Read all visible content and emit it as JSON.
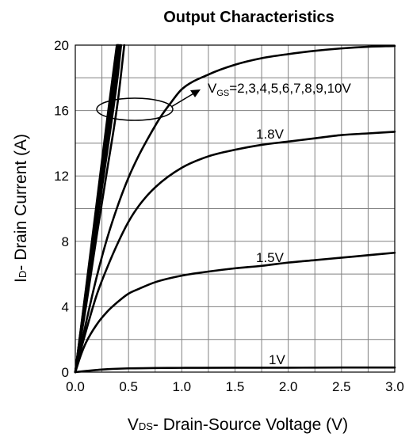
{
  "chart_data": {
    "type": "line",
    "title": "Output Characteristics",
    "xlabel": {
      "main": "V",
      "sub": "DS",
      "rest": "- Drain-Source Voltage (V)"
    },
    "ylabel": {
      "main": "I",
      "sub": "D",
      "rest": "- Drain Current (A)"
    },
    "xlim": [
      0,
      3
    ],
    "ylim": [
      0,
      20
    ],
    "x_ticks": [
      0,
      0.5,
      1,
      1.5,
      2,
      2.5,
      3
    ],
    "x_tick_labels": [
      "0.0",
      "0.5",
      "1.0",
      "1.5",
      "2.0",
      "2.5",
      "3.0"
    ],
    "y_ticks": [
      0,
      4,
      8,
      12,
      16,
      20
    ],
    "y_tick_labels": [
      "0",
      "4",
      "8",
      "12",
      "16",
      "20"
    ],
    "grid": true,
    "x_minor_step": 0.25,
    "y_minor_step": 2,
    "annotation": {
      "main": "V",
      "sub": "GS",
      "rest": "=2,3,4,5,6,7,8,9,10V"
    },
    "series": [
      {
        "name": "1V",
        "x": [
          0,
          0.1,
          0.2,
          0.3,
          0.5,
          0.75,
          1.0,
          1.5,
          2.0,
          2.5,
          3.0
        ],
        "y": [
          0,
          0.07,
          0.13,
          0.18,
          0.23,
          0.25,
          0.26,
          0.27,
          0.27,
          0.28,
          0.28
        ]
      },
      {
        "name": "1.5V",
        "x": [
          0,
          0.05,
          0.1,
          0.2,
          0.3,
          0.4,
          0.5,
          0.6,
          0.75,
          1.0,
          1.25,
          1.5,
          1.75,
          2.0,
          2.25,
          2.5,
          2.75,
          3.0
        ],
        "y": [
          0,
          1.0,
          1.8,
          2.9,
          3.7,
          4.3,
          4.8,
          5.1,
          5.5,
          5.9,
          6.15,
          6.35,
          6.5,
          6.7,
          6.85,
          7.0,
          7.15,
          7.3
        ]
      },
      {
        "name": "1.8V",
        "x": [
          0,
          0.05,
          0.1,
          0.2,
          0.3,
          0.4,
          0.5,
          0.6,
          0.75,
          1.0,
          1.25,
          1.5,
          1.75,
          2.0,
          2.25,
          2.5,
          2.75,
          3.0
        ],
        "y": [
          0,
          1.3,
          2.5,
          4.7,
          6.4,
          7.9,
          9.2,
          10.2,
          11.3,
          12.5,
          13.2,
          13.6,
          13.9,
          14.1,
          14.3,
          14.5,
          14.6,
          14.7
        ]
      },
      {
        "name": "2V",
        "x": [
          0,
          0.05,
          0.1,
          0.2,
          0.3,
          0.4,
          0.5,
          0.6,
          0.7,
          0.8,
          0.9,
          1.0,
          1.25,
          1.5,
          1.75,
          2.0,
          2.25,
          2.5,
          2.75,
          3.0
        ],
        "y": [
          0,
          1.5,
          3.0,
          5.8,
          8.2,
          10.2,
          11.9,
          13.3,
          14.5,
          15.6,
          16.5,
          17.3,
          18.2,
          18.8,
          19.2,
          19.45,
          19.65,
          19.8,
          19.9,
          19.95
        ]
      },
      {
        "name": "3V",
        "x": [
          0,
          0.1,
          0.2,
          0.3,
          0.4,
          0.46
        ],
        "y": [
          0,
          4.0,
          8.3,
          12.4,
          16.6,
          20
        ]
      },
      {
        "name": "4V",
        "x": [
          0,
          0.1,
          0.2,
          0.3,
          0.4,
          0.43
        ],
        "y": [
          0,
          4.4,
          9.0,
          13.5,
          18.2,
          20
        ]
      },
      {
        "name": "5V",
        "x": [
          0,
          0.1,
          0.2,
          0.3,
          0.4,
          0.42
        ],
        "y": [
          0,
          4.6,
          9.4,
          14.1,
          18.9,
          20
        ]
      },
      {
        "name": "6V",
        "x": [
          0,
          0.1,
          0.2,
          0.3,
          0.41
        ],
        "y": [
          0,
          4.7,
          9.6,
          14.5,
          20
        ]
      },
      {
        "name": "7V",
        "x": [
          0,
          0.1,
          0.2,
          0.3,
          0.405
        ],
        "y": [
          0,
          4.8,
          9.8,
          14.8,
          20
        ]
      },
      {
        "name": "8V",
        "x": [
          0,
          0.1,
          0.2,
          0.3,
          0.4
        ],
        "y": [
          0,
          4.9,
          9.9,
          15.0,
          20
        ]
      },
      {
        "name": "9V",
        "x": [
          0,
          0.1,
          0.2,
          0.3,
          0.395
        ],
        "y": [
          0,
          5.0,
          10.1,
          15.2,
          20
        ]
      },
      {
        "name": "10V",
        "x": [
          0,
          0.1,
          0.2,
          0.3,
          0.39
        ],
        "y": [
          0,
          5.1,
          10.3,
          15.5,
          20
        ]
      }
    ],
    "curve_labels": [
      {
        "text": "1.8V",
        "series": "1.8V"
      },
      {
        "text": "1.5V",
        "series": "1.5V"
      },
      {
        "text": "1V",
        "series": "1V"
      }
    ],
    "colors": {
      "line": "#000000",
      "grid": "#808080",
      "axis": "#000000",
      "background": "#ffffff"
    }
  }
}
